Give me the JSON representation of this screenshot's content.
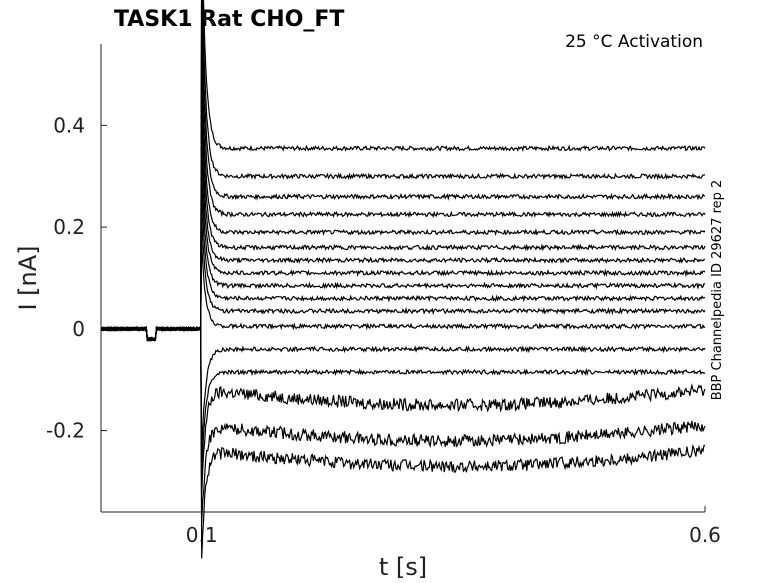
{
  "chart_data": {
    "type": "line",
    "title": "TASK1  Rat  CHO_FT",
    "annotation": "25 °C  Activation",
    "side_label": "BBP Channelpedia ID 29627 rep 2",
    "xlabel": "t [s]",
    "ylabel": "I [nA]",
    "xlim": [
      0.0,
      0.6
    ],
    "ylim": [
      -0.36,
      0.56
    ],
    "x_ticks": [
      0.1,
      0.6
    ],
    "x_tick_labels": [
      "0.1",
      "0.6"
    ],
    "y_ticks": [
      -0.2,
      0,
      0.2,
      0.4
    ],
    "y_tick_labels": [
      "-0.2",
      "0",
      "0.2",
      "0.4"
    ],
    "grid": false,
    "stimulus_window": [
      0.1,
      0.6
    ],
    "trace_color": "#000000",
    "traces_steady_state_nA": [
      0.355,
      0.3,
      0.26,
      0.225,
      0.19,
      0.16,
      0.135,
      0.11,
      0.085,
      0.06,
      0.035,
      0.005,
      -0.04,
      -0.085,
      -0.12,
      -0.19,
      -0.24
    ]
  }
}
